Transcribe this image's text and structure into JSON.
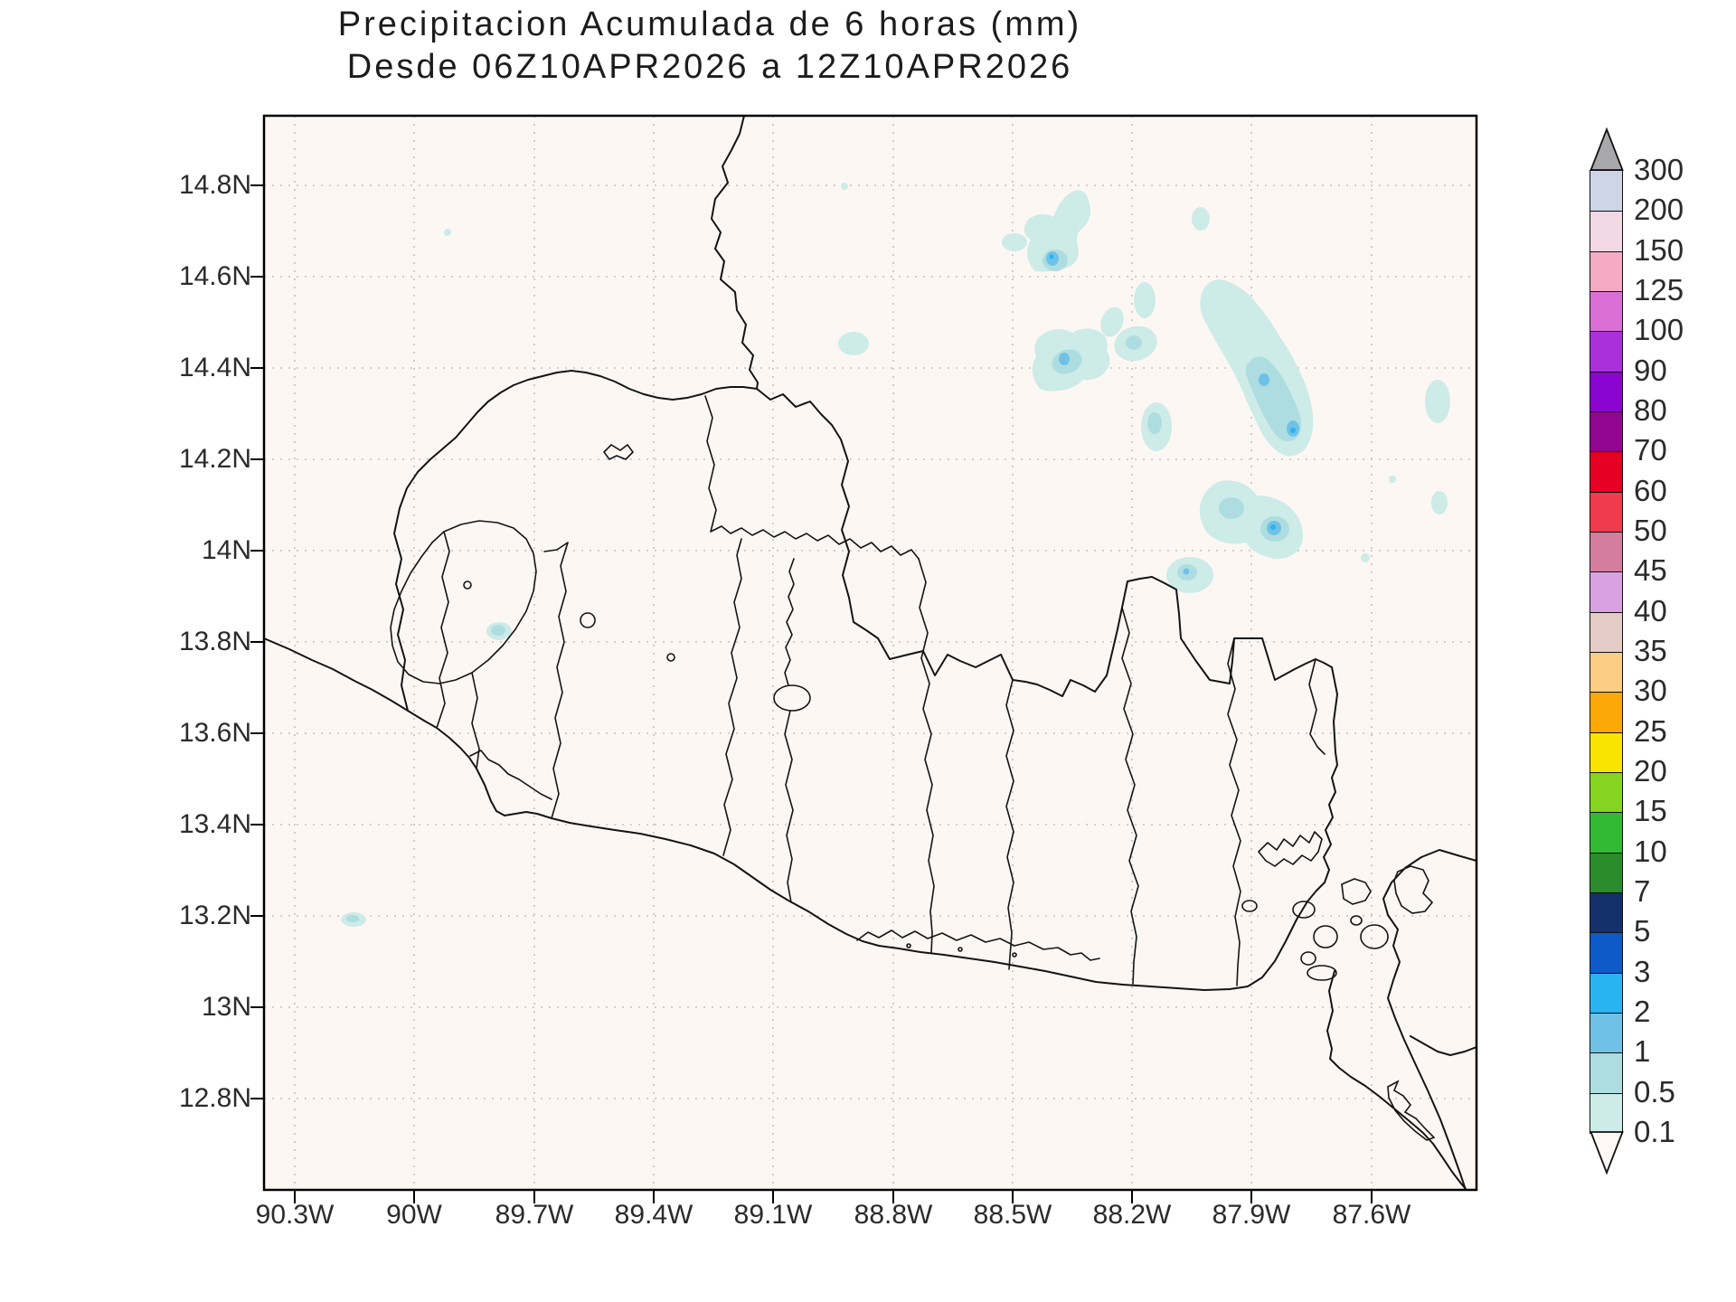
{
  "title": {
    "line1": "Precipitacion Acumulada de 6 horas (mm)",
    "line2": "Desde 06Z10APR2026 a 12Z10APR2026"
  },
  "map": {
    "lat_labels": [
      "14.8N",
      "14.6N",
      "14.4N",
      "14.2N",
      "14N",
      "13.8N",
      "13.6N",
      "13.4N",
      "13.2N",
      "13N",
      "12.8N"
    ],
    "lon_labels": [
      "90.3W",
      "90W",
      "89.7W",
      "89.4W",
      "89.1W",
      "88.8W",
      "88.5W",
      "88.2W",
      "87.9W",
      "87.6W"
    ],
    "background_color": "#fdf7f4",
    "grid_color": "#c2c2c2",
    "coastline_color": "#141414"
  },
  "colorbar": {
    "levels": [
      "0.1",
      "0.5",
      "1",
      "2",
      "3",
      "5",
      "7",
      "10",
      "15",
      "20",
      "25",
      "30",
      "35",
      "40",
      "45",
      "50",
      "60",
      "70",
      "80",
      "90",
      "100",
      "125",
      "150",
      "200",
      "300"
    ],
    "colors": [
      "#cdebe7",
      "#aedde1",
      "#6fc2e6",
      "#29b3f0",
      "#0d5ac8",
      "#15316b",
      "#2b8c2b",
      "#33ba35",
      "#85d41f",
      "#f8e400",
      "#fca908",
      "#fbcd84",
      "#e5cbc5",
      "#d9a0e2",
      "#d57d9d",
      "#ef3b4d",
      "#e60023",
      "#900690",
      "#8a05cf",
      "#aa30dc",
      "#da70d6",
      "#f5abc4",
      "#f2d8e2",
      "#cdd5e6"
    ],
    "arrow_top_color": "#a8a8aa",
    "arrow_bottom_color": "#fdf7f5"
  },
  "shading_palette_used_on_map": {
    "0.1-0.5 mm": "#cdebe7",
    "0.5-1 mm": "#aedde1",
    "1-2 mm": "#6fc2e6",
    "2-3 mm": "#29b3f0"
  },
  "precipitation_cells": [
    {
      "lat": "14.67N",
      "lon": "88.40W",
      "peak_mm": "2-3"
    },
    {
      "lat": "14.74N",
      "lon": "88.03W",
      "peak_mm": "0.1-0.5"
    },
    {
      "lat": "14.41N",
      "lon": "88.36W",
      "peak_mm": "1-2"
    },
    {
      "lat": "14.46N",
      "lon": "88.19W",
      "peak_mm": "1-2"
    },
    {
      "lat": "14.26N",
      "lon": "87.80W",
      "peak_mm": "2-3"
    },
    {
      "lat": "14.10N",
      "lon": "87.95W",
      "peak_mm": "1-2"
    },
    {
      "lat": "14.05N",
      "lon": "87.85W",
      "peak_mm": "2-3"
    },
    {
      "lat": "13.95N",
      "lon": "88.06W",
      "peak_mm": "1-2"
    },
    {
      "lat": "13.86N",
      "lon": "89.79W",
      "peak_mm": "0.5-1"
    },
    {
      "lat": "13.33N",
      "lon": "90.15W",
      "peak_mm": "0.5-1"
    }
  ]
}
